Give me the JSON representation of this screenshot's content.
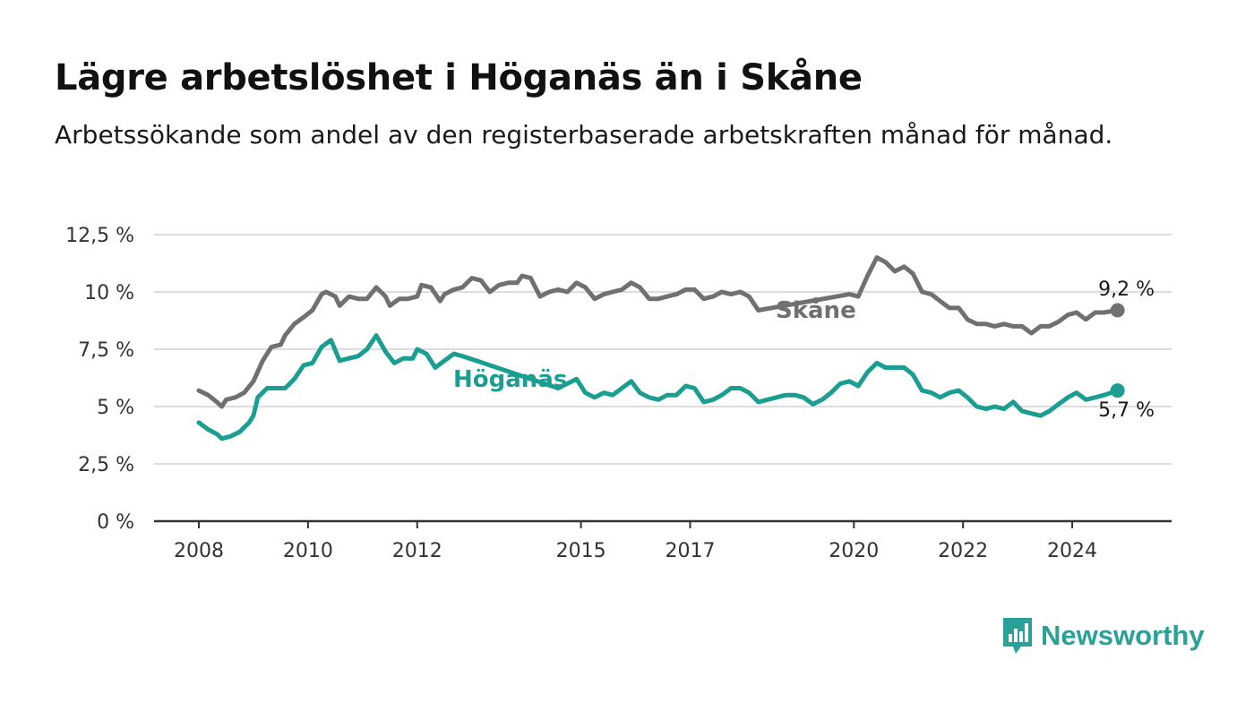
{
  "title": "Lägre arbetslöshet i Höganäs än i Skåne",
  "subtitle": "Arbetssökande som andel av den registerbaserade arbetskraften månad för månad.",
  "brand": {
    "name": "Newsworthy",
    "icon": "newsworthy-logo-icon"
  },
  "colors": {
    "skane": "#707070",
    "hoganas": "#1a9e92",
    "grid": "#dddddd",
    "axis": "#333333"
  },
  "chart_data": {
    "type": "line",
    "title": "Lägre arbetslöshet i Höganäs än i Skåne",
    "subtitle": "Arbetssökande som andel av den registerbaserade arbetskraften månad för månad.",
    "xlabel": "",
    "ylabel": "",
    "xlim": [
      2008.0,
      2025.0
    ],
    "ylim": [
      0,
      12.5
    ],
    "yticks": [
      0,
      2.5,
      5,
      7.5,
      10,
      12.5
    ],
    "ytick_labels": [
      "0 %",
      "2,5 %",
      "5 %",
      "7,5 %",
      "10 %",
      "12,5 %"
    ],
    "xticks": [
      2008,
      2010,
      2012,
      2015,
      2017,
      2020,
      2022,
      2024
    ],
    "xtick_labels": [
      "2008",
      "2010",
      "2012",
      "2015",
      "2017",
      "2020",
      "2022",
      "2024"
    ],
    "grid": true,
    "legend": "direct labels",
    "series": [
      {
        "name": "Skåne",
        "color": "#707070",
        "end_label": "9,2 %",
        "points": [
          [
            2008.0,
            5.7
          ],
          [
            2008.17,
            5.5
          ],
          [
            2008.33,
            5.2
          ],
          [
            2008.42,
            5.0
          ],
          [
            2008.5,
            5.3
          ],
          [
            2008.67,
            5.4
          ],
          [
            2008.83,
            5.6
          ],
          [
            2009.0,
            6.1
          ],
          [
            2009.17,
            7.0
          ],
          [
            2009.33,
            7.6
          ],
          [
            2009.5,
            7.7
          ],
          [
            2009.58,
            8.1
          ],
          [
            2009.75,
            8.6
          ],
          [
            2009.92,
            8.9
          ],
          [
            2010.08,
            9.2
          ],
          [
            2010.25,
            9.9
          ],
          [
            2010.33,
            10.0
          ],
          [
            2010.5,
            9.8
          ],
          [
            2010.58,
            9.4
          ],
          [
            2010.75,
            9.8
          ],
          [
            2010.92,
            9.7
          ],
          [
            2011.08,
            9.7
          ],
          [
            2011.25,
            10.2
          ],
          [
            2011.42,
            9.8
          ],
          [
            2011.5,
            9.4
          ],
          [
            2011.67,
            9.7
          ],
          [
            2011.83,
            9.7
          ],
          [
            2012.0,
            9.8
          ],
          [
            2012.08,
            10.3
          ],
          [
            2012.25,
            10.2
          ],
          [
            2012.42,
            9.6
          ],
          [
            2012.5,
            9.9
          ],
          [
            2012.67,
            10.1
          ],
          [
            2012.83,
            10.2
          ],
          [
            2013.0,
            10.6
          ],
          [
            2013.17,
            10.5
          ],
          [
            2013.33,
            10.0
          ],
          [
            2013.5,
            10.3
          ],
          [
            2013.67,
            10.4
          ],
          [
            2013.83,
            10.4
          ],
          [
            2013.92,
            10.7
          ],
          [
            2014.08,
            10.6
          ],
          [
            2014.25,
            9.8
          ],
          [
            2014.42,
            10.0
          ],
          [
            2014.58,
            10.1
          ],
          [
            2014.75,
            10.0
          ],
          [
            2014.92,
            10.4
          ],
          [
            2015.08,
            10.2
          ],
          [
            2015.25,
            9.7
          ],
          [
            2015.42,
            9.9
          ],
          [
            2015.58,
            10.0
          ],
          [
            2015.75,
            10.1
          ],
          [
            2015.92,
            10.4
          ],
          [
            2016.08,
            10.2
          ],
          [
            2016.25,
            9.7
          ],
          [
            2016.42,
            9.7
          ],
          [
            2016.58,
            9.8
          ],
          [
            2016.75,
            9.9
          ],
          [
            2016.92,
            10.1
          ],
          [
            2017.08,
            10.1
          ],
          [
            2017.25,
            9.7
          ],
          [
            2017.42,
            9.8
          ],
          [
            2017.58,
            10.0
          ],
          [
            2017.75,
            9.9
          ],
          [
            2017.92,
            10.0
          ],
          [
            2018.08,
            9.8
          ],
          [
            2018.25,
            9.2
          ],
          [
            2019.92,
            9.9
          ],
          [
            2020.08,
            9.8
          ],
          [
            2020.25,
            10.7
          ],
          [
            2020.42,
            11.5
          ],
          [
            2020.58,
            11.3
          ],
          [
            2020.75,
            10.9
          ],
          [
            2020.92,
            11.1
          ],
          [
            2021.08,
            10.8
          ],
          [
            2021.25,
            10.0
          ],
          [
            2021.42,
            9.9
          ],
          [
            2021.58,
            9.6
          ],
          [
            2021.75,
            9.3
          ],
          [
            2021.92,
            9.3
          ],
          [
            2022.08,
            8.8
          ],
          [
            2022.25,
            8.6
          ],
          [
            2022.42,
            8.6
          ],
          [
            2022.58,
            8.5
          ],
          [
            2022.75,
            8.6
          ],
          [
            2022.92,
            8.5
          ],
          [
            2023.08,
            8.5
          ],
          [
            2023.25,
            8.2
          ],
          [
            2023.42,
            8.5
          ],
          [
            2023.58,
            8.5
          ],
          [
            2023.75,
            8.7
          ],
          [
            2023.92,
            9.0
          ],
          [
            2024.08,
            9.1
          ],
          [
            2024.25,
            8.8
          ],
          [
            2024.42,
            9.1
          ],
          [
            2024.58,
            9.1
          ],
          [
            2024.83,
            9.2
          ]
        ]
      },
      {
        "name": "Höganäs",
        "color": "#1a9e92",
        "end_label": "5,7 %",
        "points": [
          [
            2008.0,
            4.3
          ],
          [
            2008.17,
            4.0
          ],
          [
            2008.33,
            3.8
          ],
          [
            2008.42,
            3.6
          ],
          [
            2008.58,
            3.7
          ],
          [
            2008.75,
            3.9
          ],
          [
            2008.92,
            4.3
          ],
          [
            2009.0,
            4.6
          ],
          [
            2009.08,
            5.4
          ],
          [
            2009.25,
            5.8
          ],
          [
            2009.42,
            5.8
          ],
          [
            2009.58,
            5.8
          ],
          [
            2009.75,
            6.2
          ],
          [
            2009.92,
            6.8
          ],
          [
            2010.08,
            6.9
          ],
          [
            2010.25,
            7.6
          ],
          [
            2010.42,
            7.9
          ],
          [
            2010.58,
            7.0
          ],
          [
            2010.75,
            7.1
          ],
          [
            2010.92,
            7.2
          ],
          [
            2011.08,
            7.5
          ],
          [
            2011.25,
            8.1
          ],
          [
            2011.42,
            7.4
          ],
          [
            2011.58,
            6.9
          ],
          [
            2011.75,
            7.1
          ],
          [
            2011.92,
            7.1
          ],
          [
            2012.0,
            7.5
          ],
          [
            2012.17,
            7.3
          ],
          [
            2012.33,
            6.7
          ],
          [
            2012.5,
            7.0
          ],
          [
            2012.67,
            7.3
          ],
          [
            2012.83,
            7.2
          ],
          [
            2013.08,
            7.0
          ],
          [
            2014.58,
            5.8
          ],
          [
            2014.75,
            6.0
          ],
          [
            2014.92,
            6.2
          ],
          [
            2015.08,
            5.6
          ],
          [
            2015.25,
            5.4
          ],
          [
            2015.42,
            5.6
          ],
          [
            2015.58,
            5.5
          ],
          [
            2015.75,
            5.8
          ],
          [
            2015.92,
            6.1
          ],
          [
            2016.08,
            5.6
          ],
          [
            2016.25,
            5.4
          ],
          [
            2016.42,
            5.3
          ],
          [
            2016.58,
            5.5
          ],
          [
            2016.75,
            5.5
          ],
          [
            2016.92,
            5.9
          ],
          [
            2017.08,
            5.8
          ],
          [
            2017.25,
            5.2
          ],
          [
            2017.42,
            5.3
          ],
          [
            2017.58,
            5.5
          ],
          [
            2017.75,
            5.8
          ],
          [
            2017.92,
            5.8
          ],
          [
            2018.08,
            5.6
          ],
          [
            2018.25,
            5.2
          ],
          [
            2018.42,
            5.3
          ],
          [
            2018.58,
            5.4
          ],
          [
            2018.75,
            5.5
          ],
          [
            2018.92,
            5.5
          ],
          [
            2019.08,
            5.4
          ],
          [
            2019.25,
            5.1
          ],
          [
            2019.42,
            5.3
          ],
          [
            2019.58,
            5.6
          ],
          [
            2019.75,
            6.0
          ],
          [
            2019.92,
            6.1
          ],
          [
            2020.08,
            5.9
          ],
          [
            2020.25,
            6.5
          ],
          [
            2020.42,
            6.9
          ],
          [
            2020.58,
            6.7
          ],
          [
            2020.75,
            6.7
          ],
          [
            2020.92,
            6.7
          ],
          [
            2021.08,
            6.4
          ],
          [
            2021.25,
            5.7
          ],
          [
            2021.42,
            5.6
          ],
          [
            2021.58,
            5.4
          ],
          [
            2021.75,
            5.6
          ],
          [
            2021.92,
            5.7
          ],
          [
            2022.08,
            5.4
          ],
          [
            2022.25,
            5.0
          ],
          [
            2022.42,
            4.9
          ],
          [
            2022.58,
            5.0
          ],
          [
            2022.75,
            4.9
          ],
          [
            2022.92,
            5.2
          ],
          [
            2023.08,
            4.8
          ],
          [
            2023.25,
            4.7
          ],
          [
            2023.42,
            4.6
          ],
          [
            2023.58,
            4.8
          ],
          [
            2023.75,
            5.1
          ],
          [
            2023.92,
            5.4
          ],
          [
            2024.08,
            5.6
          ],
          [
            2024.25,
            5.3
          ],
          [
            2024.42,
            5.4
          ],
          [
            2024.58,
            5.5
          ],
          [
            2024.83,
            5.7
          ]
        ]
      }
    ]
  }
}
